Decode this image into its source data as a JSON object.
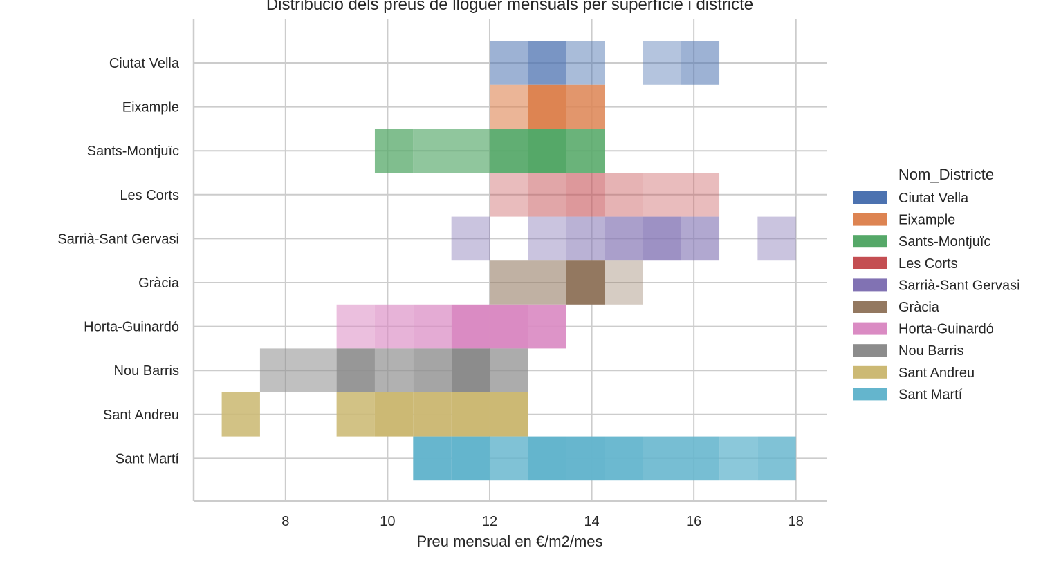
{
  "chart_data": {
    "type": "heatmap",
    "title": "Distribució dels preus de lloguer mensuals per superfície i districte",
    "xlabel": "Preu mensual en €/m2/mes",
    "ylabel": "",
    "xlim": [
      6.2,
      18.6
    ],
    "xticks": [
      8,
      10,
      12,
      14,
      16,
      18
    ],
    "grid": true,
    "legend_title": "Nom_Districte",
    "legend_position": "right",
    "bin_edges": [
      6.75,
      7.5,
      9.0,
      9.75,
      10.5,
      11.25,
      12.0,
      12.75,
      13.5,
      14.25,
      15.0,
      15.75,
      16.5,
      17.25,
      18.0
    ],
    "categories": [
      "Ciutat Vella",
      "Eixample",
      "Sants-Montjuïc",
      "Les Corts",
      "Sarrià-Sant Gervasi",
      "Gràcia",
      "Horta-Guinardó",
      "Nou Barris",
      "Sant Andreu",
      "Sant Martí"
    ],
    "series": [
      {
        "name": "Ciutat Vella",
        "color": "#4c72b0",
        "cells": [
          [
            12.0,
            12.75,
            0.55
          ],
          [
            12.75,
            13.5,
            0.75
          ],
          [
            13.5,
            14.25,
            0.48
          ],
          [
            15.0,
            15.75,
            0.42
          ],
          [
            15.75,
            16.5,
            0.55
          ]
        ]
      },
      {
        "name": "Eixample",
        "color": "#dd8452",
        "cells": [
          [
            12.0,
            12.75,
            0.6
          ],
          [
            12.75,
            13.5,
            1.0
          ],
          [
            13.5,
            14.25,
            0.85
          ]
        ]
      },
      {
        "name": "Sants-Montjuïc",
        "color": "#55a868",
        "cells": [
          [
            9.75,
            10.5,
            0.75
          ],
          [
            10.5,
            12.0,
            0.65
          ],
          [
            12.0,
            12.75,
            0.93
          ],
          [
            12.75,
            13.5,
            1.0
          ],
          [
            13.5,
            14.25,
            0.88
          ]
        ]
      },
      {
        "name": "Les Corts",
        "color": "#c44e52",
        "cells": [
          [
            12.0,
            12.75,
            0.38
          ],
          [
            12.75,
            13.5,
            0.5
          ],
          [
            13.5,
            14.25,
            0.58
          ],
          [
            14.25,
            15.0,
            0.43
          ],
          [
            15.0,
            16.5,
            0.38
          ]
        ]
      },
      {
        "name": "Sarrià-Sant Gervasi",
        "color": "#8172b3",
        "cells": [
          [
            11.25,
            12.0,
            0.42
          ],
          [
            12.75,
            13.5,
            0.42
          ],
          [
            13.5,
            14.25,
            0.55
          ],
          [
            14.25,
            15.0,
            0.68
          ],
          [
            15.0,
            15.75,
            0.78
          ],
          [
            15.75,
            16.5,
            0.62
          ],
          [
            17.25,
            18.0,
            0.42
          ]
        ]
      },
      {
        "name": "Gràcia",
        "color": "#937860",
        "cells": [
          [
            12.0,
            13.5,
            0.58
          ],
          [
            13.5,
            14.25,
            1.0
          ],
          [
            14.25,
            15.0,
            0.38
          ]
        ]
      },
      {
        "name": "Horta-Guinardó",
        "color": "#da8bc3",
        "cells": [
          [
            9.0,
            9.75,
            0.55
          ],
          [
            9.75,
            10.5,
            0.65
          ],
          [
            10.5,
            11.25,
            0.72
          ],
          [
            11.25,
            12.0,
            1.0
          ],
          [
            12.0,
            12.75,
            1.0
          ],
          [
            12.75,
            13.5,
            0.92
          ]
        ]
      },
      {
        "name": "Nou Barris",
        "color": "#8c8c8c",
        "cells": [
          [
            7.5,
            9.0,
            0.55
          ],
          [
            9.0,
            9.75,
            0.9
          ],
          [
            9.75,
            10.5,
            0.68
          ],
          [
            10.5,
            11.25,
            0.78
          ],
          [
            11.25,
            12.0,
            1.0
          ],
          [
            12.0,
            12.75,
            0.72
          ]
        ]
      },
      {
        "name": "Sant Andreu",
        "color": "#ccb974",
        "cells": [
          [
            6.75,
            7.5,
            0.88
          ],
          [
            9.0,
            9.75,
            0.88
          ],
          [
            9.75,
            10.5,
            1.0
          ],
          [
            10.5,
            11.25,
            0.98
          ],
          [
            11.25,
            12.0,
            1.0
          ],
          [
            12.0,
            12.75,
            1.0
          ]
        ]
      },
      {
        "name": "Sant Martí",
        "color": "#64b5cd",
        "cells": [
          [
            10.5,
            11.25,
            0.98
          ],
          [
            11.25,
            12.0,
            1.0
          ],
          [
            12.0,
            12.75,
            0.82
          ],
          [
            12.75,
            13.5,
            1.0
          ],
          [
            13.5,
            14.25,
            0.98
          ],
          [
            14.25,
            15.0,
            0.95
          ],
          [
            15.0,
            16.5,
            0.88
          ],
          [
            16.5,
            17.25,
            0.75
          ],
          [
            17.25,
            18.0,
            0.82
          ]
        ]
      }
    ]
  }
}
